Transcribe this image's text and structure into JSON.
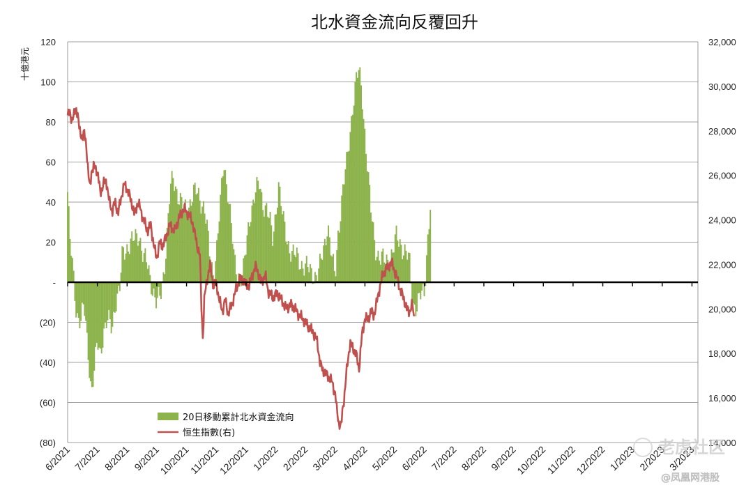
{
  "chart_data": {
    "type": "bar+line",
    "title": "北水資金流向反覆回升",
    "ylabel_left": "十億港元",
    "ylim_left": [
      -80,
      120
    ],
    "ylim_right": [
      14000,
      32000
    ],
    "yticks_left": [
      {
        "v": 120,
        "label": "120"
      },
      {
        "v": 100,
        "label": "100"
      },
      {
        "v": 80,
        "label": "80"
      },
      {
        "v": 60,
        "label": "60"
      },
      {
        "v": 40,
        "label": "40"
      },
      {
        "v": 20,
        "label": "20"
      },
      {
        "v": 0,
        "label": "-"
      },
      {
        "v": -20,
        "label": "(20)"
      },
      {
        "v": -40,
        "label": "(40)"
      },
      {
        "v": -60,
        "label": "(60)"
      },
      {
        "v": -80,
        "label": "(80)"
      }
    ],
    "yticks_right": [
      {
        "v": 32000,
        "label": "32,000"
      },
      {
        "v": 30000,
        "label": "30,000"
      },
      {
        "v": 28000,
        "label": "28,000"
      },
      {
        "v": 26000,
        "label": "26,000"
      },
      {
        "v": 24000,
        "label": "24,000"
      },
      {
        "v": 22000,
        "label": "22,000"
      },
      {
        "v": 20000,
        "label": "20,000"
      },
      {
        "v": 18000,
        "label": "18,000"
      },
      {
        "v": 16000,
        "label": "16,000"
      },
      {
        "v": 14000,
        "label": "14,000"
      }
    ],
    "x_categories": [
      "6/2021",
      "7/2021",
      "8/2021",
      "9/2021",
      "10/2021",
      "11/2021",
      "12/2021",
      "1/2022",
      "2/2022",
      "3/2022",
      "4/2022",
      "5/2022",
      "6/2022",
      "7/2022",
      "8/2022",
      "9/2022",
      "10/2022",
      "11/2022",
      "12/2022",
      "1/2023",
      "2/2023",
      "3/2023"
    ],
    "legend": {
      "position": "bottom-left"
    },
    "series": [
      {
        "name": "20日移動累計北水資金流向",
        "kind": "bar",
        "axis": "left",
        "color": "#8db34c",
        "anchors": [
          [
            0,
            45
          ],
          [
            0.08,
            20
          ],
          [
            0.2,
            3
          ],
          [
            0.3,
            -15
          ],
          [
            0.45,
            -20
          ],
          [
            0.55,
            -12
          ],
          [
            0.7,
            -35
          ],
          [
            0.8,
            -55
          ],
          [
            0.9,
            -45
          ],
          [
            1.0,
            -30
          ],
          [
            1.1,
            -35
          ],
          [
            1.2,
            -25
          ],
          [
            1.35,
            -20
          ],
          [
            1.5,
            -22
          ],
          [
            1.6,
            -10
          ],
          [
            1.75,
            -5
          ],
          [
            1.85,
            15
          ],
          [
            2.0,
            18
          ],
          [
            2.2,
            20
          ],
          [
            2.4,
            25
          ],
          [
            2.55,
            12
          ],
          [
            2.7,
            8
          ],
          [
            2.85,
            -2
          ],
          [
            3.0,
            -12
          ],
          [
            3.15,
            -5
          ],
          [
            3.3,
            15
          ],
          [
            3.45,
            45
          ],
          [
            3.55,
            52
          ],
          [
            3.7,
            45
          ],
          [
            3.85,
            38
          ],
          [
            4.0,
            35
          ],
          [
            4.15,
            42
          ],
          [
            4.3,
            45
          ],
          [
            4.45,
            42
          ],
          [
            4.6,
            38
          ],
          [
            4.7,
            25
          ],
          [
            4.8,
            10
          ],
          [
            4.9,
            5
          ],
          [
            5.0,
            15
          ],
          [
            5.15,
            40
          ],
          [
            5.25,
            60
          ],
          [
            5.4,
            45
          ],
          [
            5.5,
            30
          ],
          [
            5.6,
            10
          ],
          [
            5.7,
            5
          ],
          [
            5.8,
            3
          ],
          [
            5.9,
            5
          ],
          [
            6.0,
            15
          ],
          [
            6.15,
            35
          ],
          [
            6.3,
            45
          ],
          [
            6.45,
            48
          ],
          [
            6.55,
            40
          ],
          [
            6.7,
            38
          ],
          [
            6.8,
            30
          ],
          [
            6.9,
            20
          ],
          [
            7.0,
            35
          ],
          [
            7.1,
            50
          ],
          [
            7.25,
            30
          ],
          [
            7.4,
            20
          ],
          [
            7.55,
            15
          ],
          [
            7.7,
            12
          ],
          [
            7.85,
            10
          ],
          [
            8.0,
            8
          ],
          [
            8.15,
            5
          ],
          [
            8.3,
            4
          ],
          [
            8.45,
            5
          ],
          [
            8.6,
            15
          ],
          [
            8.75,
            30
          ],
          [
            8.9,
            10
          ],
          [
            9.0,
            2
          ],
          [
            9.1,
            25
          ],
          [
            9.25,
            45
          ],
          [
            9.4,
            60
          ],
          [
            9.5,
            75
          ],
          [
            9.6,
            90
          ],
          [
            9.7,
            100
          ],
          [
            9.8,
            105
          ],
          [
            9.9,
            95
          ],
          [
            10.0,
            75
          ],
          [
            10.1,
            55
          ],
          [
            10.2,
            35
          ],
          [
            10.35,
            18
          ],
          [
            10.5,
            12
          ],
          [
            10.65,
            10
          ],
          [
            10.8,
            12
          ],
          [
            10.95,
            15
          ],
          [
            11.05,
            22
          ],
          [
            11.2,
            20
          ],
          [
            11.35,
            15
          ],
          [
            11.5,
            10
          ],
          [
            11.6,
            -10
          ],
          [
            11.75,
            -12
          ],
          [
            11.85,
            -8
          ],
          [
            12.0,
            -5
          ],
          [
            12.1,
            20
          ],
          [
            12.2,
            38
          ]
        ]
      },
      {
        "name": "恒生指數(右)",
        "kind": "line",
        "axis": "right",
        "color": "#c0504d",
        "anchors": [
          [
            0,
            28700
          ],
          [
            0.08,
            28800
          ],
          [
            0.15,
            28500
          ],
          [
            0.22,
            28700
          ],
          [
            0.28,
            29100
          ],
          [
            0.33,
            28800
          ],
          [
            0.4,
            28000
          ],
          [
            0.5,
            27700
          ],
          [
            0.55,
            27900
          ],
          [
            0.62,
            27500
          ],
          [
            0.7,
            26000
          ],
          [
            0.75,
            25400
          ],
          [
            0.8,
            26200
          ],
          [
            0.9,
            26400
          ],
          [
            1.0,
            26200
          ],
          [
            1.1,
            25200
          ],
          [
            1.2,
            25600
          ],
          [
            1.3,
            25800
          ],
          [
            1.4,
            24800
          ],
          [
            1.5,
            24400
          ],
          [
            1.6,
            24800
          ],
          [
            1.7,
            24300
          ],
          [
            1.8,
            25000
          ],
          [
            1.9,
            25600
          ],
          [
            2.0,
            25400
          ],
          [
            2.15,
            24800
          ],
          [
            2.25,
            24200
          ],
          [
            2.35,
            24800
          ],
          [
            2.45,
            24500
          ],
          [
            2.55,
            24000
          ],
          [
            2.7,
            23500
          ],
          [
            2.8,
            23800
          ],
          [
            2.9,
            22800
          ],
          [
            3.0,
            22300
          ],
          [
            3.1,
            23000
          ],
          [
            3.2,
            22800
          ],
          [
            3.35,
            23400
          ],
          [
            3.45,
            23800
          ],
          [
            3.6,
            23500
          ],
          [
            3.75,
            24100
          ],
          [
            3.9,
            24500
          ],
          [
            4.05,
            24300
          ],
          [
            4.2,
            23900
          ],
          [
            4.35,
            22900
          ],
          [
            4.45,
            22400
          ],
          [
            4.5,
            20100
          ],
          [
            4.55,
            18700
          ],
          [
            4.6,
            20500
          ],
          [
            4.7,
            21400
          ],
          [
            4.8,
            22000
          ],
          [
            4.9,
            21000
          ],
          [
            5.0,
            21200
          ],
          [
            5.1,
            20400
          ],
          [
            5.2,
            19900
          ],
          [
            5.3,
            20400
          ],
          [
            5.4,
            19800
          ],
          [
            5.5,
            20100
          ],
          [
            5.65,
            20800
          ],
          [
            5.8,
            21400
          ],
          [
            5.95,
            21200
          ],
          [
            6.1,
            21000
          ],
          [
            6.25,
            21700
          ],
          [
            6.35,
            21900
          ],
          [
            6.5,
            21200
          ],
          [
            6.65,
            21500
          ],
          [
            6.75,
            20800
          ],
          [
            6.9,
            20500
          ],
          [
            7.05,
            20700
          ],
          [
            7.2,
            20400
          ],
          [
            7.35,
            20000
          ],
          [
            7.5,
            20200
          ],
          [
            7.65,
            20000
          ],
          [
            7.8,
            19700
          ],
          [
            7.95,
            19500
          ],
          [
            8.1,
            19200
          ],
          [
            8.25,
            19000
          ],
          [
            8.4,
            18500
          ],
          [
            8.5,
            17500
          ],
          [
            8.6,
            17200
          ],
          [
            8.75,
            17000
          ],
          [
            8.9,
            16700
          ],
          [
            9.0,
            16200
          ],
          [
            9.05,
            15500
          ],
          [
            9.12,
            14900
          ],
          [
            9.2,
            14700
          ],
          [
            9.25,
            15500
          ],
          [
            9.3,
            16000
          ],
          [
            9.4,
            17400
          ],
          [
            9.5,
            18500
          ],
          [
            9.6,
            18200
          ],
          [
            9.7,
            18000
          ],
          [
            9.8,
            17300
          ],
          [
            9.9,
            18800
          ],
          [
            10.0,
            19600
          ],
          [
            10.1,
            19500
          ],
          [
            10.2,
            19900
          ],
          [
            10.3,
            19700
          ],
          [
            10.4,
            20300
          ],
          [
            10.5,
            21000
          ],
          [
            10.6,
            21500
          ],
          [
            10.7,
            21800
          ],
          [
            10.8,
            21900
          ],
          [
            10.9,
            22100
          ],
          [
            11.0,
            21700
          ],
          [
            11.1,
            21300
          ],
          [
            11.2,
            20800
          ],
          [
            11.3,
            20500
          ],
          [
            11.4,
            20000
          ],
          [
            11.5,
            19900
          ],
          [
            11.6,
            20200
          ],
          [
            11.65,
            19600
          ]
        ]
      }
    ]
  },
  "watermark": {
    "text_main": "老虎社区",
    "text_sub": "@凤凰网港股"
  }
}
